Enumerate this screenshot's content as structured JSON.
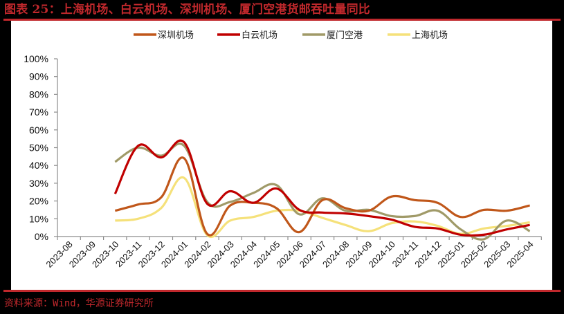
{
  "title": "图表 25：上海机场、白云机场、深圳机场、厦门空港货邮吞吐量同比",
  "footer": "资料来源：Wind，华源证券研究所",
  "colors": {
    "accent": "#C0282C",
    "axis": "#8C8C8C"
  },
  "chart_data": {
    "type": "line",
    "title": "图表 25：上海机场、白云机场、深圳机场、厦门空港货邮吞吐量同比",
    "xlabel": "",
    "ylabel": "",
    "ylim": [
      0,
      100
    ],
    "yticks": [
      "0%",
      "10%",
      "20%",
      "30%",
      "40%",
      "50%",
      "60%",
      "70%",
      "80%",
      "90%",
      "100%"
    ],
    "grid": false,
    "legend_position": "top",
    "categories": [
      "2023-08",
      "2023-09",
      "2023-10",
      "2023-11",
      "2023-12",
      "2024-01",
      "2024-02",
      "2024-03",
      "2024-04",
      "2024-05",
      "2024-06",
      "2024-07",
      "2024-08",
      "2024-09",
      "2024-10",
      "2024-11",
      "2024-12",
      "2025-01",
      "2025-02",
      "2025-03",
      "2025-04"
    ],
    "series": [
      {
        "name": "深圳机场",
        "color": "#C0571A",
        "values": [
          null,
          null,
          14.5,
          18,
          22,
          44,
          1.5,
          17.5,
          19,
          16,
          2.5,
          20.5,
          16,
          14.5,
          22.5,
          20.5,
          19,
          11,
          15,
          14.5,
          17.5
        ]
      },
      {
        "name": "白云机场",
        "color": "#C00000",
        "values": [
          null,
          null,
          24,
          51,
          44.5,
          53,
          18.5,
          25.5,
          19,
          27,
          15,
          13.5,
          13,
          11.5,
          9.5,
          5.5,
          4.5,
          1,
          1,
          4,
          6.5
        ]
      },
      {
        "name": "厦门空港",
        "color": "#A09A68",
        "values": [
          null,
          null,
          42,
          50,
          45.5,
          51,
          19.5,
          19.5,
          24.5,
          29,
          12.5,
          21.5,
          14.5,
          15,
          11.5,
          11.5,
          14.5,
          4,
          -1.5,
          9,
          3
        ]
      },
      {
        "name": "上海机场",
        "color": "#F5E17A",
        "values": [
          null,
          null,
          9,
          10,
          16,
          33,
          0.8,
          9,
          11,
          14.5,
          14.5,
          10.5,
          6.5,
          3,
          7.5,
          8.5,
          6,
          1.5,
          4.5,
          6,
          8
        ]
      }
    ]
  }
}
